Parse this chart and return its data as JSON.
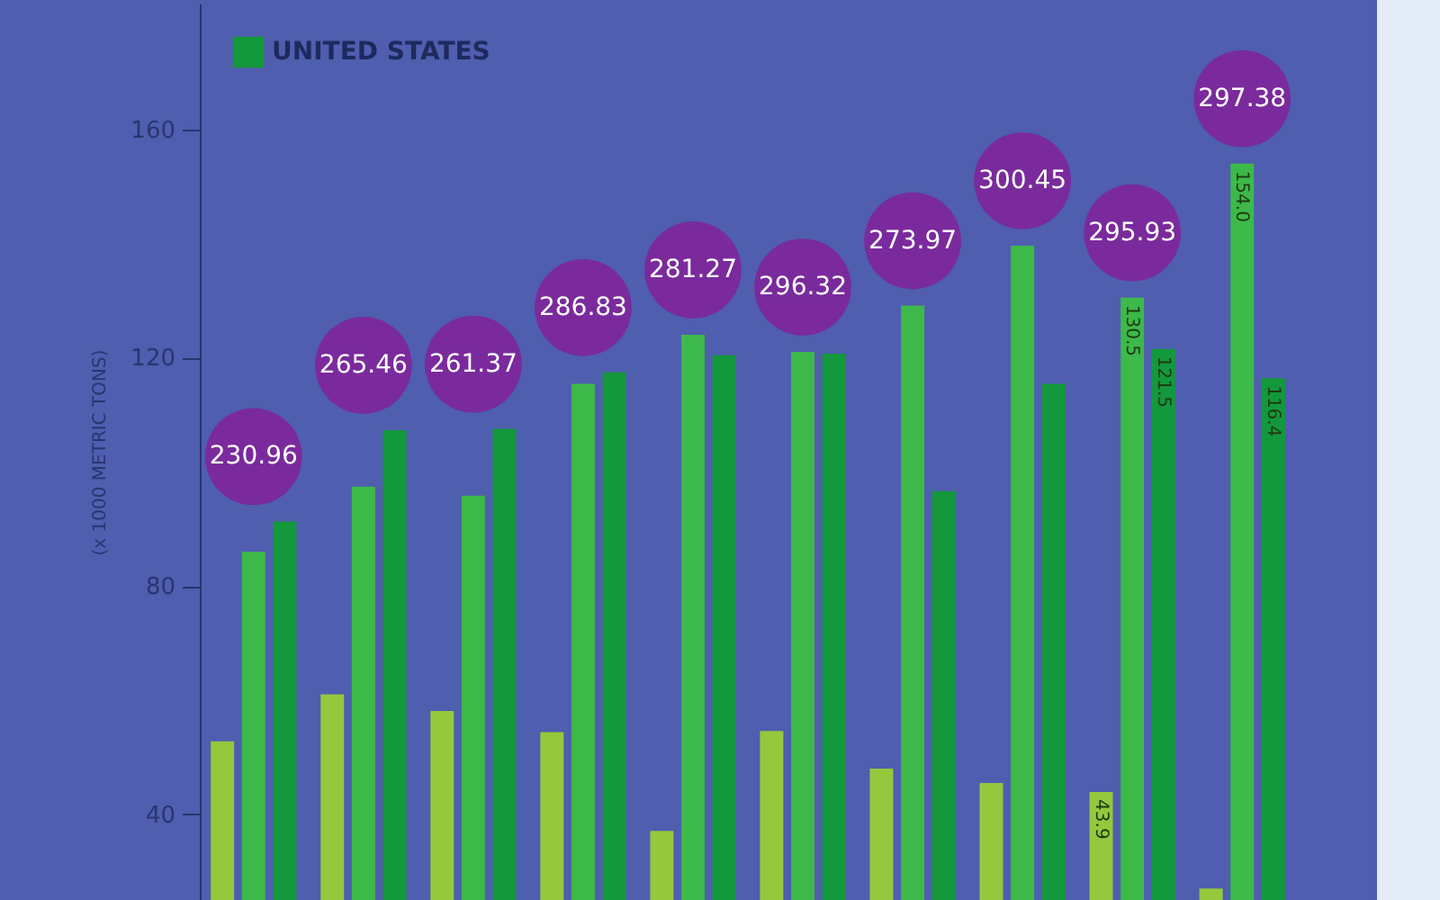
{
  "chart_data": {
    "type": "bar",
    "ylabel": "(x 1000 METRIC TONS)",
    "categories": [
      null,
      null,
      null,
      null,
      null,
      null,
      null,
      null,
      null,
      null
    ],
    "series": [
      {
        "color": "#95c83c",
        "values": [
          52.8,
          61.0,
          58.1,
          54.4,
          37.1,
          54.6,
          48.0,
          45.5,
          43.9,
          27.0
        ],
        "value_labels": [
          null,
          null,
          null,
          null,
          null,
          null,
          null,
          null,
          "43.9",
          null
        ]
      },
      {
        "color": "#3db94a",
        "values": [
          86.0,
          97.4,
          95.8,
          115.4,
          124.0,
          121.0,
          129.1,
          139.6,
          130.5,
          154.0
        ],
        "value_labels": [
          null,
          null,
          null,
          null,
          null,
          null,
          null,
          null,
          "130.5",
          "154.0"
        ]
      },
      {
        "name": "UNITED STATES",
        "color": "#13983c",
        "values": [
          91.3,
          107.3,
          107.5,
          117.4,
          120.4,
          120.7,
          96.6,
          115.4,
          121.5,
          116.4
        ],
        "value_labels": [
          null,
          null,
          null,
          null,
          null,
          null,
          null,
          null,
          "121.5",
          "116.4"
        ]
      }
    ],
    "annotations": [
      "230.96",
      "265.46",
      "261.37",
      "286.83",
      "281.27",
      "296.32",
      "273.97",
      "300.45",
      "295.93",
      "297.38"
    ],
    "ylim": [
      25,
      182
    ],
    "yticks": [
      40,
      80,
      120,
      160
    ],
    "tick_labels": "y",
    "legend": "top left",
    "grid": false
  }
}
